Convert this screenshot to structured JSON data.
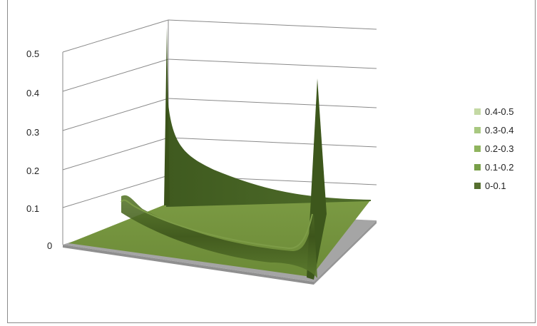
{
  "chart_data": {
    "type": "surface",
    "title": "",
    "xlabel": "",
    "ylabel": "",
    "zlim": [
      0,
      0.5
    ],
    "z_ticks": [
      "0",
      "0.1",
      "0.2",
      "0.3",
      "0.4",
      "0.5"
    ],
    "grid": true,
    "legend_position": "right",
    "legend": [
      {
        "label": "0.4-0.5",
        "color": "#c4d9a4"
      },
      {
        "label": "0.3-0.4",
        "color": "#a8c880"
      },
      {
        "label": "0.2-0.3",
        "color": "#8fb45e"
      },
      {
        "label": "0.1-0.2",
        "color": "#789f48"
      },
      {
        "label": "0-0.1",
        "color": "#566f2f"
      }
    ],
    "surface_color": "#6f8f3c",
    "floor_color": "#a5a5a5"
  }
}
